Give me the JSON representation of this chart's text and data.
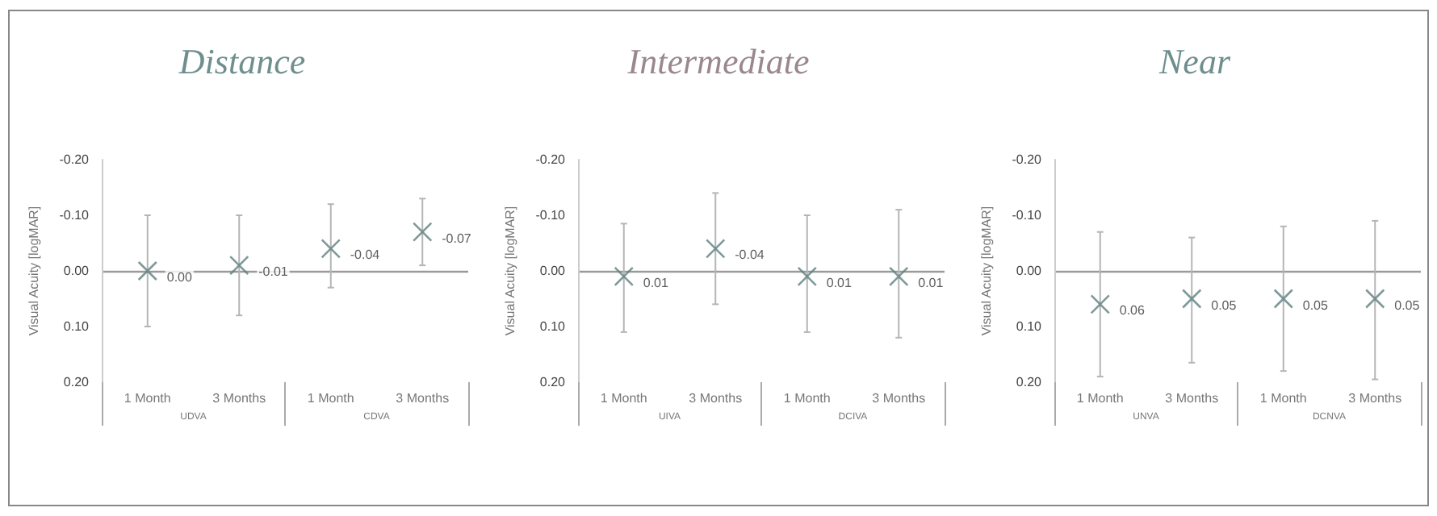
{
  "chart_data": [
    {
      "type": "scatter",
      "title": "Distance",
      "ylabel": "Visual Acuity [logMAR]",
      "categories": [
        "1 Month",
        "3 Months",
        "1 Month",
        "3 Months"
      ],
      "annotations": [
        "UDVA",
        "CDVA"
      ],
      "series": [
        {
          "color": "#5f7f80",
          "values": [
            0.0,
            -0.01,
            -0.04,
            -0.07
          ],
          "value_labels": [
            "0.00",
            "-0.01",
            "-0.04",
            "-0.07"
          ],
          "errors": [
            [
              -0.1,
              0.1
            ],
            [
              -0.1,
              0.08
            ],
            [
              -0.12,
              0.03
            ],
            [
              -0.13,
              -0.01
            ]
          ]
        }
      ],
      "ylim": [
        0.2,
        -0.2
      ],
      "yticks": [
        {
          "value": -0.2,
          "label": "-0.20"
        },
        {
          "value": -0.1,
          "label": "-0.10"
        },
        {
          "value": 0,
          "label": "0.00"
        },
        {
          "value": 0.1,
          "label": "0.10"
        },
        {
          "value": 0.2,
          "label": "0.20"
        }
      ],
      "ref_lines": [
        {
          "axis": "y",
          "value": 0
        }
      ],
      "marker": "cross",
      "grid": false
    },
    {
      "type": "scatter",
      "title": "Intermediate",
      "ylabel": "Visual Acuity [logMAR]",
      "categories": [
        "1 Month",
        "3 Months",
        "1 Month",
        "3 Months"
      ],
      "annotations": [
        "UIVA",
        "DCIVA"
      ],
      "series": [
        {
          "color": "#5f7f80",
          "values": [
            0.01,
            -0.04,
            0.01,
            0.01
          ],
          "value_labels": [
            "0.01",
            "-0.04",
            "0.01",
            "0.01"
          ],
          "errors": [
            [
              -0.085,
              0.11
            ],
            [
              -0.14,
              0.06
            ],
            [
              -0.1,
              0.11
            ],
            [
              -0.11,
              0.12
            ]
          ]
        }
      ],
      "ylim": [
        0.2,
        -0.2
      ],
      "yticks": [
        {
          "value": -0.2,
          "label": "-0.20"
        },
        {
          "value": -0.1,
          "label": "-0.10"
        },
        {
          "value": 0,
          "label": "0.00"
        },
        {
          "value": 0.1,
          "label": "0.10"
        },
        {
          "value": 0.2,
          "label": "0.20"
        }
      ],
      "ref_lines": [
        {
          "axis": "y",
          "value": 0
        }
      ],
      "marker": "cross",
      "grid": false
    },
    {
      "type": "scatter",
      "title": "Near",
      "ylabel": "Visual Acuity [logMAR]",
      "categories": [
        "1 Month",
        "3 Months",
        "1 Month",
        "3 Months"
      ],
      "annotations": [
        "UNVA",
        "DCNVA"
      ],
      "series": [
        {
          "color": "#5f7f80",
          "values": [
            0.06,
            0.05,
            0.05,
            0.05
          ],
          "value_labels": [
            "0.06",
            "0.05",
            "0.05",
            "0.05"
          ],
          "errors": [
            [
              -0.07,
              0.19
            ],
            [
              -0.06,
              0.165
            ],
            [
              -0.08,
              0.18
            ],
            [
              -0.09,
              0.195
            ]
          ]
        }
      ],
      "ylim": [
        0.2,
        -0.2
      ],
      "yticks": [
        {
          "value": -0.2,
          "label": "-0.20"
        },
        {
          "value": -0.1,
          "label": "-0.10"
        },
        {
          "value": 0,
          "label": "0.00"
        },
        {
          "value": 0.1,
          "label": "0.10"
        },
        {
          "value": 0.2,
          "label": "0.20"
        }
      ],
      "ref_lines": [
        {
          "axis": "y",
          "value": 0
        }
      ],
      "marker": "cross",
      "grid": false
    }
  ]
}
